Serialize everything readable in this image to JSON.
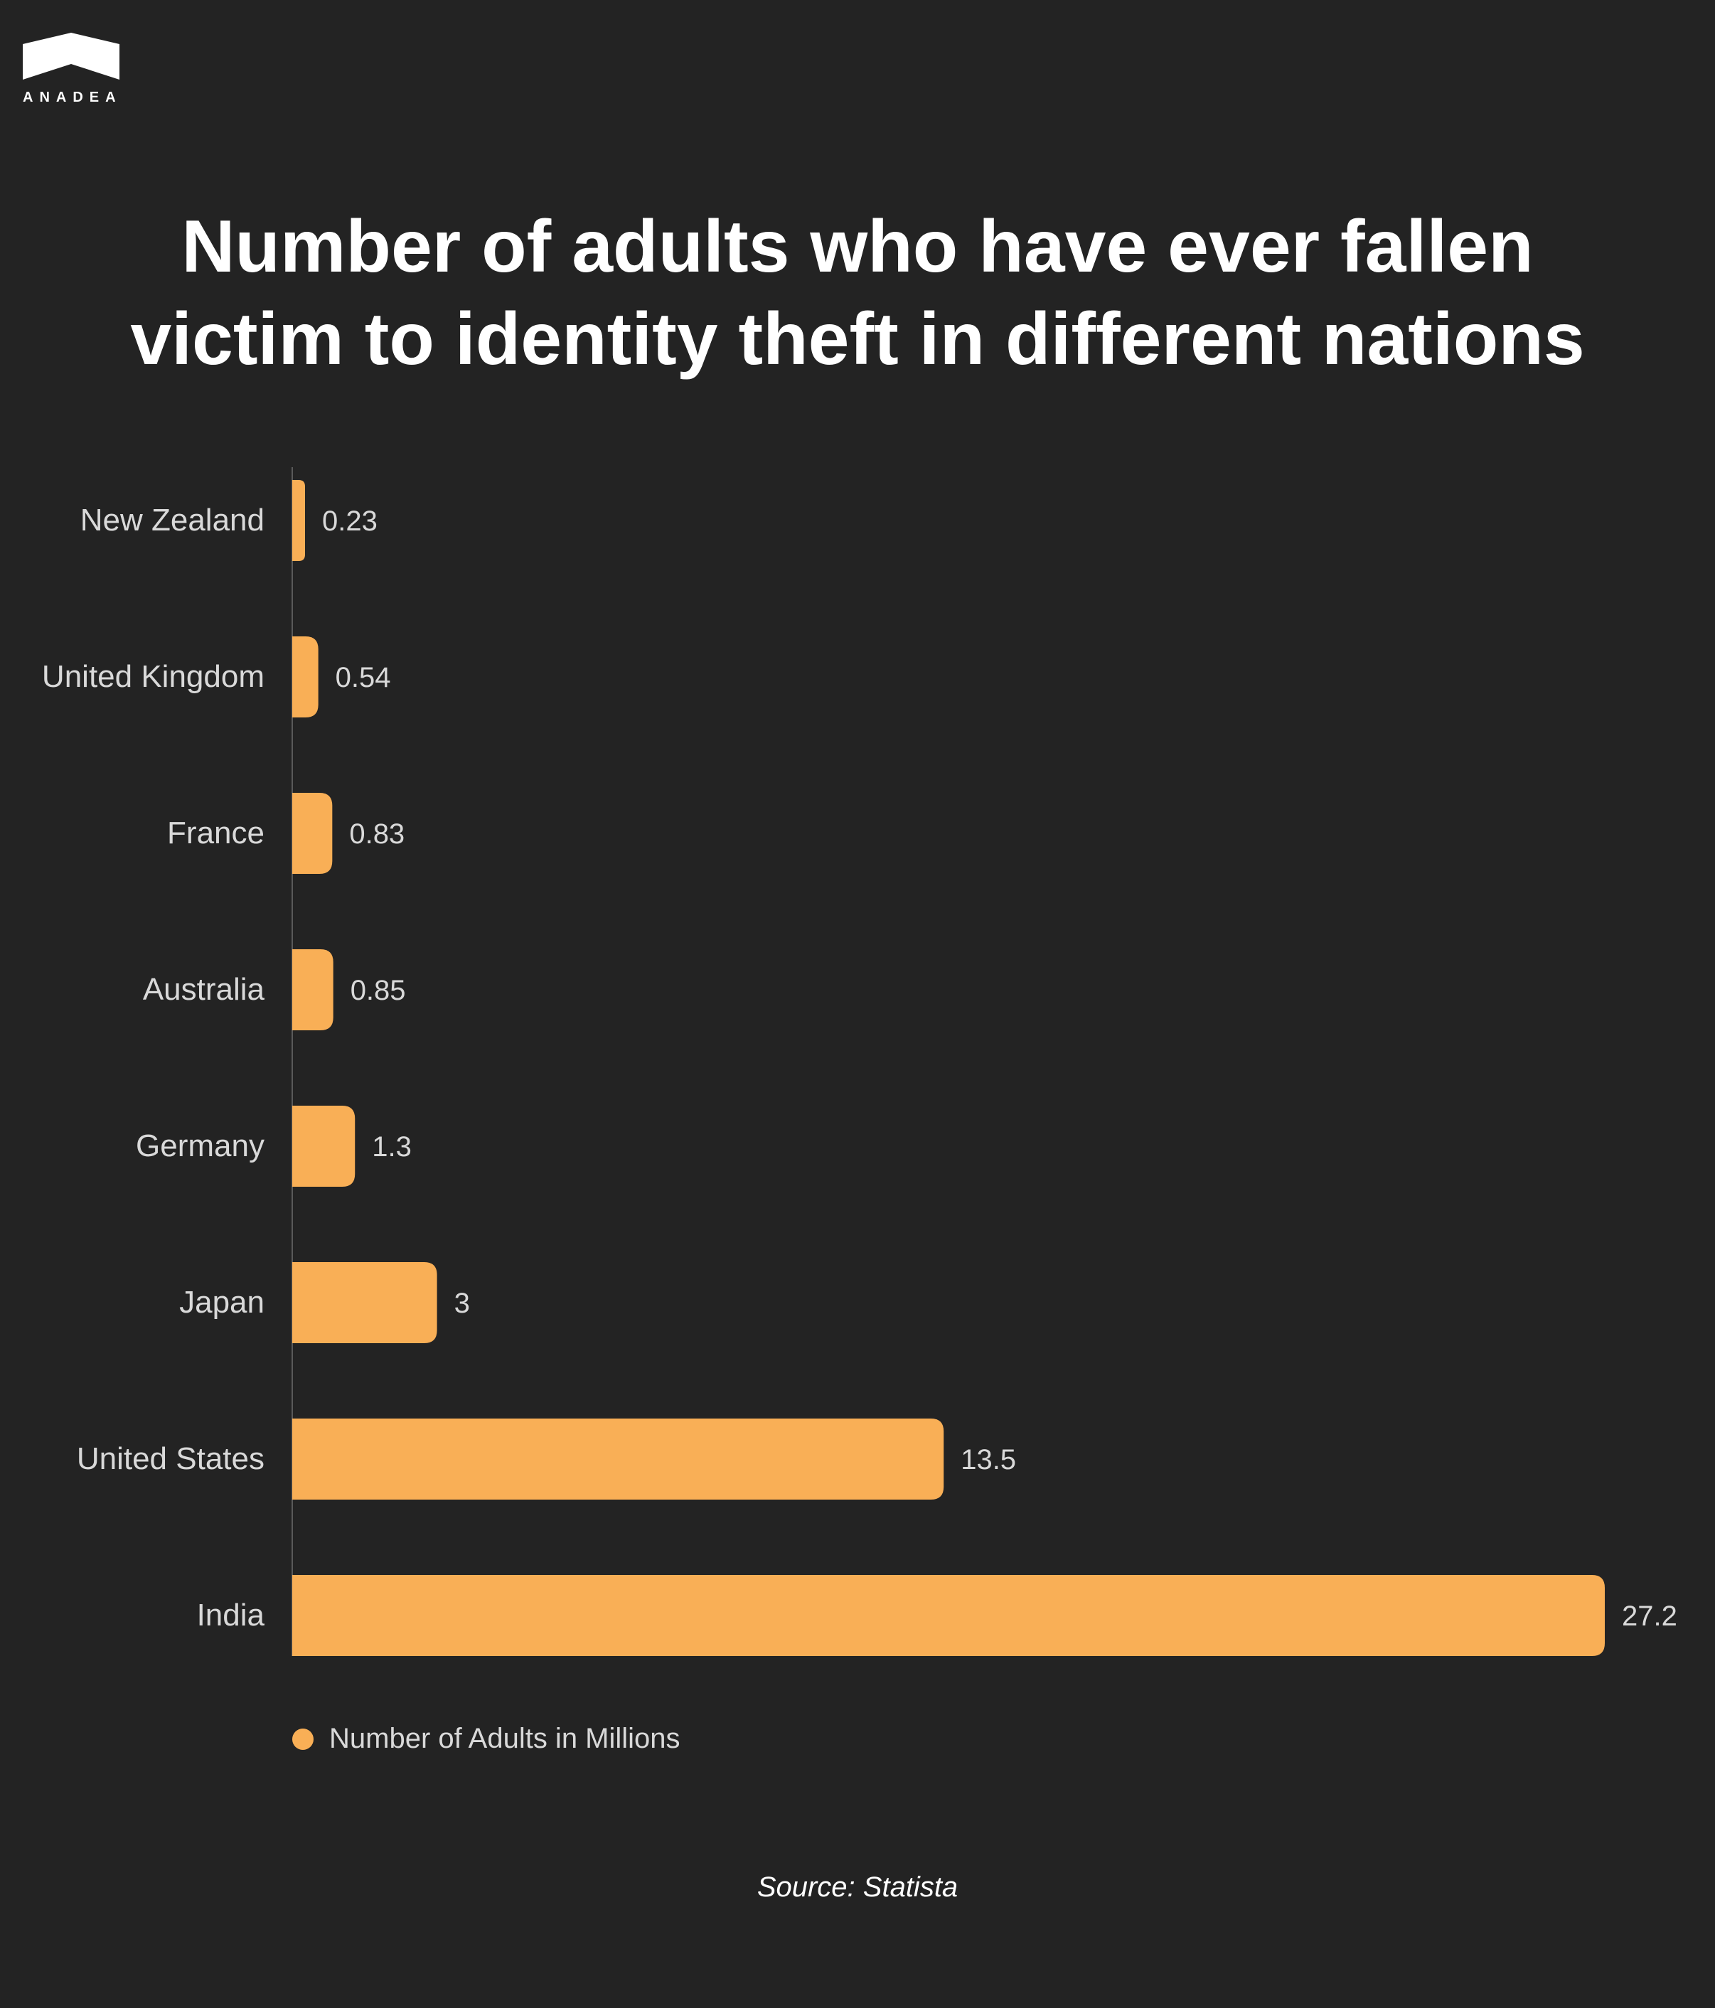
{
  "brand": {
    "name": "ANADEA"
  },
  "title_lines": [
    "Number of adults who have ever fallen",
    "victim to identity theft in different nations"
  ],
  "colors": {
    "background": "#232323",
    "bar": "#F9AF56",
    "axis": "#5a5a5a",
    "label": "#d9d9d9"
  },
  "chart_data": {
    "type": "bar",
    "orientation": "horizontal",
    "title": "Number of adults who have ever fallen victim to identity theft in different nations",
    "categories": [
      "New Zealand",
      "United Kingdom",
      "France",
      "Australia",
      "Germany",
      "Japan",
      "United States",
      "India"
    ],
    "series": [
      {
        "name": "Number of Adults in Millions",
        "values": [
          0.23,
          0.54,
          0.83,
          0.85,
          1.3,
          3,
          13.5,
          27.2
        ]
      }
    ],
    "value_labels": [
      "0.23",
      "0.54",
      "0.83",
      "0.85",
      "1.3",
      "3",
      "13.5",
      "27.2"
    ],
    "xlim": [
      0,
      27.2
    ],
    "grid": false,
    "legend_position": "bottom-left"
  },
  "legend": {
    "label": "Number of Adults in Millions"
  },
  "source": "Source: Statista"
}
